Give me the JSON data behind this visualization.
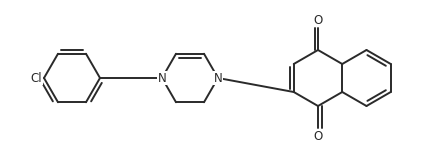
{
  "bg_color": "#ffffff",
  "line_color": "#2a2a2a",
  "line_width": 1.4,
  "text_color": "#2a2a2a",
  "font_size": 8.5,
  "figsize": [
    4.36,
    1.55
  ],
  "dpi": 100,
  "xlim": [
    0,
    436
  ],
  "ylim": [
    0,
    155
  ]
}
